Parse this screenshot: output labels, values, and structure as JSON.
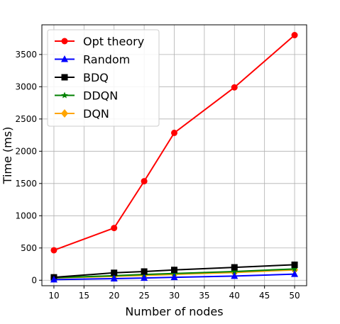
{
  "chart_data": {
    "type": "line",
    "title": "",
    "xlabel": "Number of nodes",
    "ylabel": "Time (ms)",
    "x": [
      10,
      20,
      25,
      30,
      40,
      50
    ],
    "xlim": [
      8,
      52
    ],
    "ylim": [
      -85,
      3960
    ],
    "xticks": [
      10,
      15,
      20,
      25,
      30,
      35,
      40,
      45,
      50
    ],
    "yticks": [
      0,
      500,
      1000,
      1500,
      2000,
      2500,
      3000,
      3500
    ],
    "grid": true,
    "legend_position": "top-left",
    "series": [
      {
        "name": "Opt theory",
        "color": "#ff0000",
        "marker": "circle",
        "values": [
          465,
          810,
          1535,
          2285,
          2990,
          3800
        ]
      },
      {
        "name": "Random",
        "color": "#0000ff",
        "marker": "triangle",
        "values": [
          10,
          25,
          35,
          45,
          65,
          95
        ]
      },
      {
        "name": "BDQ",
        "color": "#000000",
        "marker": "square",
        "values": [
          45,
          115,
          135,
          160,
          200,
          240
        ]
      },
      {
        "name": "DDQN",
        "color": "#008000",
        "marker": "star",
        "values": [
          38,
          70,
          90,
          105,
          135,
          175
        ]
      },
      {
        "name": "DQN",
        "color": "#ffa500",
        "marker": "diamond",
        "values": [
          35,
          60,
          75,
          90,
          120,
          160
        ]
      }
    ]
  }
}
